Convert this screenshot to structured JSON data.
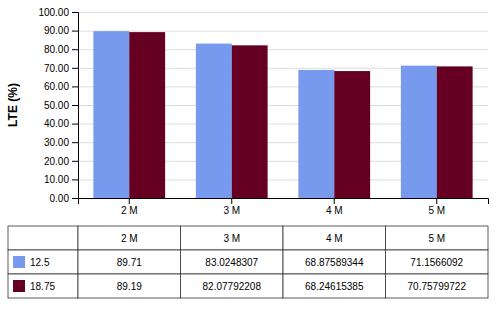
{
  "chart_data": {
    "type": "bar",
    "categories": [
      "2 M",
      "3 M",
      "4 M",
      "5 M"
    ],
    "series": [
      {
        "name": "12.5",
        "color": "#7799EE",
        "values": [
          89.71,
          83.0248307,
          68.87589344,
          71.1566092
        ]
      },
      {
        "name": "18.75",
        "color": "#660022",
        "values": [
          89.19,
          82.07792208,
          68.24615385,
          70.75799722
        ]
      }
    ],
    "ylabel": "LTE (%)",
    "ylim": [
      0,
      100
    ],
    "yticks": [
      {
        "value": 0,
        "label": "0.00"
      },
      {
        "value": 10,
        "label": "10.00"
      },
      {
        "value": 20,
        "label": "20.00"
      },
      {
        "value": 30,
        "label": "30.00"
      },
      {
        "value": 40,
        "label": "40.00"
      },
      {
        "value": 50,
        "label": "50.00"
      },
      {
        "value": 60,
        "label": "60.00"
      },
      {
        "value": 70,
        "label": "70.00"
      },
      {
        "value": 80,
        "label": "80.00"
      },
      {
        "value": 90,
        "label": "90.00"
      },
      {
        "value": 100,
        "label": "100.00"
      }
    ],
    "grid": true,
    "legend": "bottom",
    "data_labels": true
  }
}
